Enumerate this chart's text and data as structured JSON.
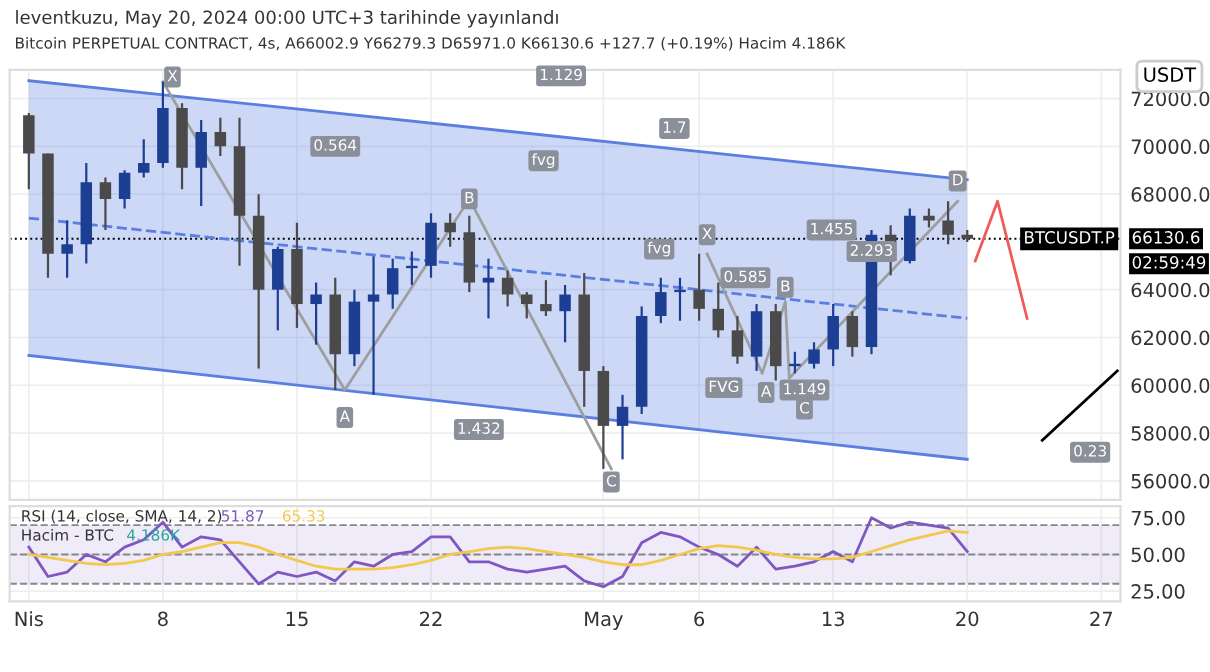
{
  "chart_data": [
    {
      "type": "candlestick",
      "title": "leventkuzu, May 20, 2024 00:00 UTC+3 tarihinde yayınlandı",
      "subtitle": "Bitcoin PERPETUAL CONTRACT, 4s, A66002.9 Y66279.3 D65971.0 K66130.6 +127.7 (+0.19%) Hacim 4.186K",
      "ylabel": "USDT",
      "x": [
        "2024-04-01",
        "2024-04-02",
        "2024-04-03",
        "2024-04-04",
        "2024-04-05",
        "2024-04-06",
        "2024-04-07",
        "2024-04-08",
        "2024-04-09",
        "2024-04-10",
        "2024-04-11",
        "2024-04-12",
        "2024-04-13",
        "2024-04-14",
        "2024-04-15",
        "2024-04-16",
        "2024-04-17",
        "2024-04-18",
        "2024-04-19",
        "2024-04-20",
        "2024-04-21",
        "2024-04-22",
        "2024-04-23",
        "2024-04-24",
        "2024-04-25",
        "2024-04-26",
        "2024-04-27",
        "2024-04-28",
        "2024-04-29",
        "2024-04-30",
        "2024-05-01",
        "2024-05-02",
        "2024-05-03",
        "2024-05-04",
        "2024-05-05",
        "2024-05-06",
        "2024-05-07",
        "2024-05-08",
        "2024-05-09",
        "2024-05-10",
        "2024-05-11",
        "2024-05-12",
        "2024-05-13",
        "2024-05-14",
        "2024-05-15",
        "2024-05-16",
        "2024-05-17",
        "2024-05-18",
        "2024-05-19",
        "2024-05-20"
      ],
      "ohlc": [
        [
          71300,
          71400,
          68200,
          69700
        ],
        [
          69700,
          69700,
          64500,
          65500
        ],
        [
          65500,
          66900,
          64500,
          65900
        ],
        [
          65900,
          69300,
          65100,
          68500
        ],
        [
          68500,
          68700,
          66500,
          67800
        ],
        [
          67800,
          69000,
          67400,
          68900
        ],
        [
          68900,
          70300,
          68700,
          69300
        ],
        [
          69300,
          72700,
          69100,
          71600
        ],
        [
          71600,
          71800,
          68200,
          69100
        ],
        [
          69100,
          71100,
          67500,
          70600
        ],
        [
          70600,
          71200,
          69600,
          70000
        ],
        [
          70000,
          71200,
          65000,
          67100
        ],
        [
          67100,
          68000,
          60700,
          64000
        ],
        [
          64000,
          65800,
          62300,
          65700
        ],
        [
          65700,
          66800,
          62400,
          63400
        ],
        [
          63400,
          64300,
          61700,
          63800
        ],
        [
          63800,
          64500,
          59800,
          61300
        ],
        [
          61300,
          64000,
          60800,
          63500
        ],
        [
          63500,
          65400,
          59600,
          63800
        ],
        [
          63800,
          65300,
          63200,
          64900
        ],
        [
          64900,
          65600,
          64200,
          65000
        ],
        [
          65000,
          67200,
          64500,
          66800
        ],
        [
          66800,
          67200,
          65800,
          66400
        ],
        [
          66400,
          67100,
          63900,
          64300
        ],
        [
          64300,
          65300,
          62800,
          64500
        ],
        [
          64500,
          64800,
          63300,
          63800
        ],
        [
          63800,
          63900,
          62800,
          63400
        ],
        [
          63400,
          64400,
          62900,
          63100
        ],
        [
          63100,
          64200,
          61800,
          63800
        ],
        [
          63800,
          64700,
          59100,
          60600
        ],
        [
          60600,
          60800,
          56500,
          58300
        ],
        [
          58300,
          59600,
          56900,
          59100
        ],
        [
          59100,
          63300,
          58800,
          62900
        ],
        [
          62900,
          64500,
          62600,
          63900
        ],
        [
          63900,
          64500,
          62700,
          64000
        ],
        [
          64000,
          65500,
          62700,
          63200
        ],
        [
          63200,
          64300,
          62000,
          62300
        ],
        [
          62300,
          62900,
          60900,
          61200
        ],
        [
          61200,
          63400,
          60600,
          63100
        ],
        [
          63100,
          63400,
          60200,
          60800
        ],
        [
          60800,
          61400,
          60500,
          60900
        ],
        [
          60900,
          61800,
          60700,
          61500
        ],
        [
          61500,
          63400,
          60800,
          62900
        ],
        [
          62900,
          63100,
          61200,
          61600
        ],
        [
          61600,
          66500,
          61300,
          66300
        ],
        [
          66300,
          66700,
          64600,
          65200
        ],
        [
          65200,
          67400,
          65100,
          67100
        ],
        [
          67100,
          67400,
          66600,
          66900
        ],
        [
          66900,
          67700,
          65900,
          66300
        ],
        [
          66300,
          66500,
          66000,
          66130.6
        ]
      ],
      "colors": [
        "#4a4a4a",
        "#4a4a4a",
        "#1c3f94",
        "#1c3f94",
        "#4a4a4a",
        "#1c3f94",
        "#1c3f94",
        "#1c3f94",
        "#4a4a4a",
        "#1c3f94",
        "#4a4a4a",
        "#4a4a4a",
        "#4a4a4a",
        "#1c3f94",
        "#4a4a4a",
        "#1c3f94",
        "#4a4a4a",
        "#1c3f94",
        "#1c3f94",
        "#1c3f94",
        "#1c3f94",
        "#1c3f94",
        "#4a4a4a",
        "#4a4a4a",
        "#1c3f94",
        "#4a4a4a",
        "#4a4a4a",
        "#4a4a4a",
        "#1c3f94",
        "#4a4a4a",
        "#4a4a4a",
        "#1c3f94",
        "#1c3f94",
        "#1c3f94",
        "#1c3f94",
        "#4a4a4a",
        "#4a4a4a",
        "#4a4a4a",
        "#1c3f94",
        "#4a4a4a",
        "#1c3f94",
        "#1c3f94",
        "#1c3f94",
        "#4a4a4a",
        "#1c3f94",
        "#4a4a4a",
        "#1c3f94",
        "#4a4a4a",
        "#4a4a4a",
        "#4a4a4a"
      ],
      "xlim": [
        "2024-03-31",
        "2024-05-28"
      ],
      "xticks": [
        {
          "value": "2024-04-01",
          "label": null
        },
        {
          "value": "2024-04-08",
          "label": null
        },
        {
          "value": "2024-04-15",
          "label": null
        },
        {
          "value": "2024-04-22",
          "label": null
        },
        {
          "value": "2024-05-01",
          "label": null
        },
        {
          "value": "2024-05-06",
          "label": null
        },
        {
          "value": "2024-05-13",
          "label": null
        },
        {
          "value": "2024-05-20",
          "label": null
        },
        {
          "value": "2024-05-27",
          "label": null
        }
      ],
      "ylim": [
        55200,
        73200
      ],
      "yticks": [
        {
          "value": 56000,
          "label": "56000.0"
        },
        {
          "value": 58000,
          "label": "58000.0"
        },
        {
          "value": 60000,
          "label": "60000.0"
        },
        {
          "value": 62000,
          "label": "62000.0"
        },
        {
          "value": 64000,
          "label": "64000.0"
        },
        {
          "value": 68000,
          "label": "68000.0"
        },
        {
          "value": 70000,
          "label": "70000.0"
        },
        {
          "value": 72000,
          "label": "72000.0"
        }
      ],
      "tick_labels": "y",
      "grid": true,
      "series": [
        {
          "type": "line",
          "color": "#5b7fe0",
          "line_style": "dashed",
          "x": [
            "2024-04-01",
            "2024-05-20"
          ],
          "values": [
            67000,
            62800
          ],
          "lower": [
            61250,
            56900
          ],
          "upper": [
            72750,
            68600
          ]
        },
        {
          "type": "line",
          "color": "#5b7fe0",
          "line_style": "solid",
          "x": [
            "2024-04-01",
            "2024-05-20"
          ],
          "values": [
            72750,
            68600
          ]
        },
        {
          "type": "line",
          "color": "#5b7fe0",
          "line_style": "solid",
          "x": [
            "2024-04-01",
            "2024-05-20"
          ],
          "values": [
            61250,
            56900
          ]
        },
        {
          "type": "line",
          "color": "#9e9e9e",
          "line_style": "solid",
          "x": [
            "2024-04-08",
            "2024-04-17T12:00",
            "2024-04-24",
            "2024-05-01T10:00"
          ],
          "values": [
            72700,
            59800,
            67800,
            56500
          ]
        },
        {
          "type": "line",
          "color": "#9e9e9e",
          "line_style": "solid",
          "x": [
            "2024-05-06T10:00",
            "2024-05-09T07:00",
            "2024-05-10T12:00",
            "2024-05-10T17:00",
            "2024-05-19T12:00"
          ],
          "values": [
            65500,
            60500,
            63500,
            60300,
            67700
          ]
        },
        {
          "type": "line",
          "color": "#f05a5a",
          "line_style": "solid",
          "x": [
            "2024-05-20T10:00",
            "2024-05-21T14:00",
            "2024-05-23T03:00"
          ],
          "values": [
            65200,
            67700,
            62800
          ]
        },
        {
          "type": "line",
          "color": "#000000",
          "line_style": "solid",
          "x": [
            "2024-05-23T22:00",
            "2024-05-27T20:00"
          ],
          "values": [
            57700,
            60600
          ]
        }
      ],
      "ref_lines": [
        {
          "axis": "y",
          "value": 66130.6,
          "label": "66130.6",
          "color": "#000000",
          "line_style": "dotted"
        }
      ],
      "annotations": [
        "BTCUSDT.P",
        "02:59:49",
        {
          "text": "X",
          "x": "2024-04-08T12:00",
          "y": 72900
        },
        {
          "text": "A",
          "x": "2024-04-17T12:00",
          "y": 58650
        },
        {
          "text": "B",
          "x": "2024-04-24",
          "y": 67800
        },
        {
          "text": "C",
          "x": "2024-05-01T10:00",
          "y": 55950
        },
        {
          "text": "1.129",
          "x": "2024-04-28T19:00",
          "y": 72950
        },
        {
          "text": "0.564",
          "x": "2024-04-17",
          "y": 70000
        },
        {
          "text": "1.7",
          "x": "2024-05-04T17:00",
          "y": 70750
        },
        {
          "text": "1.432",
          "x": "2024-04-24T12:00",
          "y": 58150
        },
        {
          "text": "fvg",
          "x": "2024-04-27T21:00",
          "y": 69400
        },
        {
          "text": "fvg",
          "x": "2024-05-03T22:00",
          "y": 65700
        },
        {
          "text": "X",
          "x": "2024-05-06T10:00",
          "y": 66300
        },
        {
          "text": "0.585",
          "x": "2024-05-08T10:00",
          "y": 64500
        },
        {
          "text": "B",
          "x": "2024-05-10T12:00",
          "y": 64100
        },
        {
          "text": "1.455",
          "x": "2024-05-12T22:00",
          "y": 66500
        },
        {
          "text": "2.293",
          "x": "2024-05-15",
          "y": 65600
        },
        {
          "text": "D",
          "x": "2024-05-19T12:00",
          "y": 68550
        },
        {
          "text": "FVG",
          "x": "2024-05-07T07:00",
          "y": 59900
        },
        {
          "text": "1.149",
          "x": "2024-05-11T12:00",
          "y": 59800
        },
        {
          "text": "A",
          "x": "2024-05-09T12:00",
          "y": 59700
        },
        {
          "text": "C",
          "x": "2024-05-11T12:00",
          "y": 59000
        },
        {
          "text": "0.23",
          "x": "2024-05-26T10:00",
          "y": 57200
        }
      ]
    },
    {
      "type": "line",
      "title": "RSI (14, close, SMA, 14, 2)",
      "x": [
        "2024-04-01",
        "2024-04-02",
        "2024-04-03",
        "2024-04-04",
        "2024-04-05",
        "2024-04-06",
        "2024-04-07",
        "2024-04-08",
        "2024-04-09",
        "2024-04-10",
        "2024-04-11",
        "2024-04-12",
        "2024-04-13",
        "2024-04-14",
        "2024-04-15",
        "2024-04-16",
        "2024-04-17",
        "2024-04-18",
        "2024-04-19",
        "2024-04-20",
        "2024-04-21",
        "2024-04-22",
        "2024-04-23",
        "2024-04-24",
        "2024-04-25",
        "2024-04-26",
        "2024-04-27",
        "2024-04-28",
        "2024-04-29",
        "2024-04-30",
        "2024-05-01",
        "2024-05-02",
        "2024-05-03",
        "2024-05-04",
        "2024-05-05",
        "2024-05-06",
        "2024-05-07",
        "2024-05-08",
        "2024-05-09",
        "2024-05-10",
        "2024-05-11",
        "2024-05-12",
        "2024-05-13",
        "2024-05-14",
        "2024-05-15",
        "2024-05-16",
        "2024-05-17",
        "2024-05-18",
        "2024-05-19",
        "2024-05-20"
      ],
      "series": [
        {
          "color": "#7e57c2",
          "values": [
            55,
            35,
            38,
            50,
            45,
            55,
            60,
            72,
            55,
            62,
            60,
            45,
            30,
            38,
            35,
            38,
            32,
            45,
            42,
            50,
            52,
            62,
            62,
            45,
            45,
            40,
            38,
            40,
            42,
            32,
            28,
            35,
            58,
            65,
            62,
            55,
            50,
            42,
            55,
            40,
            42,
            45,
            52,
            45,
            75,
            68,
            72,
            70,
            68,
            52
          ]
        },
        {
          "color": "#f2c94c",
          "values": [
            50,
            48,
            46,
            44,
            43,
            44,
            46,
            50,
            52,
            55,
            58,
            58,
            55,
            50,
            46,
            42,
            40,
            40,
            40,
            41,
            43,
            46,
            50,
            52,
            54,
            55,
            54,
            52,
            50,
            48,
            45,
            43,
            43,
            46,
            50,
            54,
            56,
            55,
            53,
            50,
            48,
            47,
            47,
            48,
            52,
            56,
            60,
            63,
            66,
            65
          ]
        }
      ],
      "xlim": [
        "2024-03-31",
        "2024-05-28"
      ],
      "xticks": [
        {
          "value": "2024-04-01",
          "label": "Nis"
        },
        {
          "value": "2024-04-08",
          "label": "8"
        },
        {
          "value": "2024-04-15",
          "label": "15"
        },
        {
          "value": "2024-04-22",
          "label": "22"
        },
        {
          "value": "2024-05-01",
          "label": "May"
        },
        {
          "value": "2024-05-06",
          "label": "6"
        },
        {
          "value": "2024-05-13",
          "label": "13"
        },
        {
          "value": "2024-05-20",
          "label": "20"
        },
        {
          "value": "2024-05-27",
          "label": "27"
        }
      ],
      "ylim": [
        18,
        83
      ],
      "yticks": [
        {
          "value": 25,
          "label": "25.00"
        },
        {
          "value": 50,
          "label": "50.00"
        },
        {
          "value": 75,
          "label": "75.00"
        }
      ],
      "grid": true,
      "bands": [
        {
          "axis": "y",
          "from": 30,
          "to": 70,
          "color": "#7e57c2"
        }
      ],
      "ref_lines": [
        {
          "axis": "y",
          "value": 70,
          "color": "#888888",
          "line_style": "dashed"
        },
        {
          "axis": "y",
          "value": 50,
          "color": "#888888",
          "line_style": "dashed"
        },
        {
          "axis": "y",
          "value": 30,
          "color": "#888888",
          "line_style": "dashed"
        }
      ],
      "annotations": [
        "51.87",
        "65.33",
        "Hacim - BTC",
        "4.186K"
      ]
    }
  ]
}
